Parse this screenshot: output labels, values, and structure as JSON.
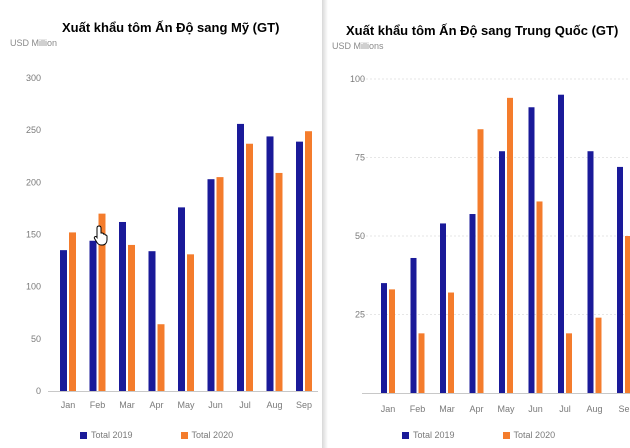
{
  "colors": {
    "series_2019": "#1a1a99",
    "series_2020": "#f47c2c",
    "grid": "#e6e6e6",
    "axis": "#c8c8c8"
  },
  "cursor_icon": "hand-pointer-icon",
  "chart_data": [
    {
      "type": "bar",
      "title": "Xuất khẩu tôm Ấn Độ sang Mỹ (GT)",
      "unit_label": "USD Million",
      "categories": [
        "Jan",
        "Feb",
        "Mar",
        "Apr",
        "May",
        "Jun",
        "Jul",
        "Aug",
        "Sep"
      ],
      "y_ticks": [
        "0",
        "50",
        "100",
        "150",
        "200",
        "250",
        "300"
      ],
      "ylim": [
        0,
        300
      ],
      "grid": false,
      "legend": "bottom",
      "series": [
        {
          "name": "Total 2019",
          "values": [
            135,
            144,
            162,
            134,
            176,
            203,
            256,
            244,
            239
          ]
        },
        {
          "name": "Total 2020",
          "values": [
            152,
            170,
            140,
            64,
            131,
            205,
            237,
            209,
            249
          ]
        }
      ]
    },
    {
      "type": "bar",
      "title": "Xuất khẩu tôm Ấn Độ sang Trung Quốc (GT)",
      "unit_label": "USD Millions",
      "categories": [
        "Jan",
        "Feb",
        "Mar",
        "Apr",
        "May",
        "Jun",
        "Jul",
        "Aug",
        "Se"
      ],
      "y_ticks": [
        "25",
        "50",
        "75",
        "100"
      ],
      "ylim": [
        0,
        100
      ],
      "grid": true,
      "legend": "bottom",
      "series": [
        {
          "name": "Total 2019",
          "values": [
            35,
            43,
            54,
            57,
            77,
            91,
            95,
            77,
            72
          ]
        },
        {
          "name": "Total 2020",
          "values": [
            33,
            19,
            32,
            84,
            94,
            61,
            19,
            24,
            50
          ]
        }
      ]
    }
  ]
}
